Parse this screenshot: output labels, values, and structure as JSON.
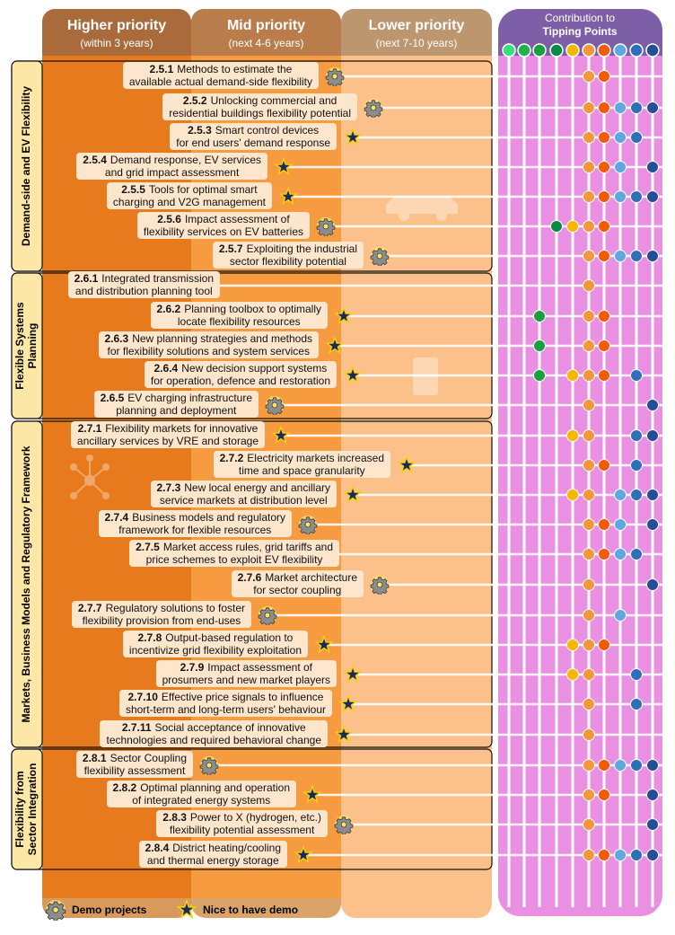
{
  "columns": [
    {
      "title": "Higher priority",
      "subtitle": "(within 3 years)"
    },
    {
      "title": "Mid priority",
      "subtitle": "(next 4-6 years)"
    },
    {
      "title": "Lower priority",
      "subtitle": "(next 7-10 years)"
    }
  ],
  "contribution": {
    "title_line1": "Contribution to",
    "title_line2": "Tipping Points",
    "colors": [
      "#38e07a",
      "#1fb34a",
      "#18a03c",
      "#0b8a45",
      "#f5b700",
      "#f4963a",
      "#f25a06",
      "#5ea8e2",
      "#2f6fba",
      "#244f98"
    ]
  },
  "sections": [
    {
      "label": [
        "Demand-side and EV Flexibility"
      ]
    },
    {
      "label": [
        "Flexible Systems",
        "Planning"
      ]
    },
    {
      "label": [
        "Markets, Business Models and Regulatory Framework"
      ]
    },
    {
      "label": [
        "Flexibility from",
        "Sector Integration"
      ]
    }
  ],
  "items": [
    {
      "id": "2.5.1",
      "line1": "Methods to estimate the",
      "line2": "available actual demand-side flexibility",
      "icon": "demo",
      "tipping_points": [
        5,
        6
      ]
    },
    {
      "id": "2.5.2",
      "line1": "Unlocking commercial and",
      "line2": "residential buildings flexibility potential",
      "icon": "demo",
      "tipping_points": [
        5,
        6,
        7,
        8,
        9
      ]
    },
    {
      "id": "2.5.3",
      "line1": "Smart control devices",
      "line2": "for end users' demand response",
      "icon": "nice",
      "tipping_points": [
        5,
        6,
        7,
        8
      ]
    },
    {
      "id": "2.5.4",
      "line1": "Demand response, EV services",
      "line2": "and grid impact assessment",
      "icon": "nice",
      "tipping_points": [
        5,
        6,
        7,
        9
      ]
    },
    {
      "id": "2.5.5",
      "line1": "Tools for optimal smart",
      "line2": "charging and V2G management",
      "icon": "nice",
      "tipping_points": [
        5,
        6,
        7,
        8,
        9
      ]
    },
    {
      "id": "2.5.6",
      "line1": "Impact assessment of",
      "line2": "flexibility services on EV batteries",
      "icon": "demo",
      "tipping_points": [
        3,
        4,
        5,
        6
      ]
    },
    {
      "id": "2.5.7",
      "line1": "Exploiting the industrial",
      "line2": "sector flexibility potential",
      "icon": "demo",
      "tipping_points": [
        5,
        6,
        7,
        8,
        9
      ]
    },
    {
      "id": "2.6.1",
      "line1": "Integrated transmission",
      "line2": "and distribution planning tool",
      "icon": "none",
      "tipping_points": [
        5
      ]
    },
    {
      "id": "2.6.2",
      "line1": "Planning toolbox to optimally",
      "line2": "locate flexibility resources",
      "icon": "nice",
      "tipping_points": [
        2,
        5,
        6
      ]
    },
    {
      "id": "2.6.3",
      "line1": "New planning strategies and methods",
      "line2": "for flexibility solutions and system services",
      "icon": "nice",
      "tipping_points": [
        2,
        5,
        6
      ]
    },
    {
      "id": "2.6.4",
      "line1": "New decision support systems",
      "line2": "for operation, defence and restoration",
      "icon": "nice",
      "tipping_points": [
        2,
        4,
        5,
        6,
        8
      ]
    },
    {
      "id": "2.6.5",
      "line1": "EV charging infrastructure",
      "line2": "planning and deployment",
      "icon": "demo",
      "tipping_points": [
        5,
        9
      ]
    },
    {
      "id": "2.7.1",
      "line1": "Flexibility markets for innovative",
      "line2": "ancillary services by VRE and storage",
      "icon": "nice",
      "tipping_points": [
        4,
        5,
        8,
        9
      ]
    },
    {
      "id": "2.7.2",
      "line1": "Electricity markets increased",
      "line2": "time and space granularity",
      "icon": "nice",
      "tipping_points": [
        5,
        6,
        8
      ]
    },
    {
      "id": "2.7.3",
      "line1": "New local energy and ancillary",
      "line2": "service markets at distribution level",
      "icon": "nice",
      "tipping_points": [
        4,
        5,
        7,
        8,
        9
      ]
    },
    {
      "id": "2.7.4",
      "line1": "Business models and regulatory",
      "line2": "framework for flexible resources",
      "icon": "demo",
      "tipping_points": [
        5,
        6,
        7,
        9
      ]
    },
    {
      "id": "2.7.5",
      "line1": "Market access rules, grid tariffs and",
      "line2": "price schemes to exploit EV flexibility",
      "icon": "none",
      "tipping_points": [
        5,
        6,
        7,
        8
      ]
    },
    {
      "id": "2.7.6",
      "line1": "Market architecture",
      "line2": "for sector coupling",
      "icon": "demo",
      "tipping_points": [
        5,
        9
      ]
    },
    {
      "id": "2.7.7",
      "line1": "Regulatory solutions to foster",
      "line2": "flexibility provision from end-uses",
      "icon": "demo",
      "tipping_points": [
        5,
        7
      ]
    },
    {
      "id": "2.7.8",
      "line1": "Output-based regulation to",
      "line2": "incentivize grid flexibility exploitation",
      "icon": "nice",
      "tipping_points": [
        4,
        5,
        6
      ]
    },
    {
      "id": "2.7.9",
      "line1": "Impact assessment of",
      "line2": "prosumers and new market players",
      "icon": "nice",
      "tipping_points": [
        4,
        5,
        8
      ]
    },
    {
      "id": "2.7.10",
      "line1": "Effective price signals to influence",
      "line2": "short-term and long-term users' behaviour",
      "icon": "nice",
      "tipping_points": [
        5,
        8
      ]
    },
    {
      "id": "2.7.11",
      "line1": "Social acceptance of innovative",
      "line2": "technologies and required behavioral change",
      "icon": "nice",
      "tipping_points": [
        5
      ]
    },
    {
      "id": "2.8.1",
      "line1": "Sector Coupling",
      "line2": "flexibility assessment",
      "icon": "demo",
      "tipping_points": [
        5,
        6,
        7,
        8,
        9
      ]
    },
    {
      "id": "2.8.2",
      "line1": "Optimal planning and operation",
      "line2": "of integrated energy systems",
      "icon": "nice",
      "tipping_points": [
        5,
        6,
        9
      ]
    },
    {
      "id": "2.8.3",
      "line1": "Power to X (hydrogen, etc.)",
      "line2": "flexibility potential assessment",
      "icon": "demo",
      "tipping_points": [
        5,
        9
      ]
    },
    {
      "id": "2.8.4",
      "line1": "District heating/cooling",
      "line2": "and thermal energy storage",
      "icon": "nice",
      "tipping_points": [
        5,
        6,
        7,
        8,
        9
      ]
    }
  ],
  "legend": {
    "demo": "Demo projects",
    "nice": "Nice to have demo"
  }
}
